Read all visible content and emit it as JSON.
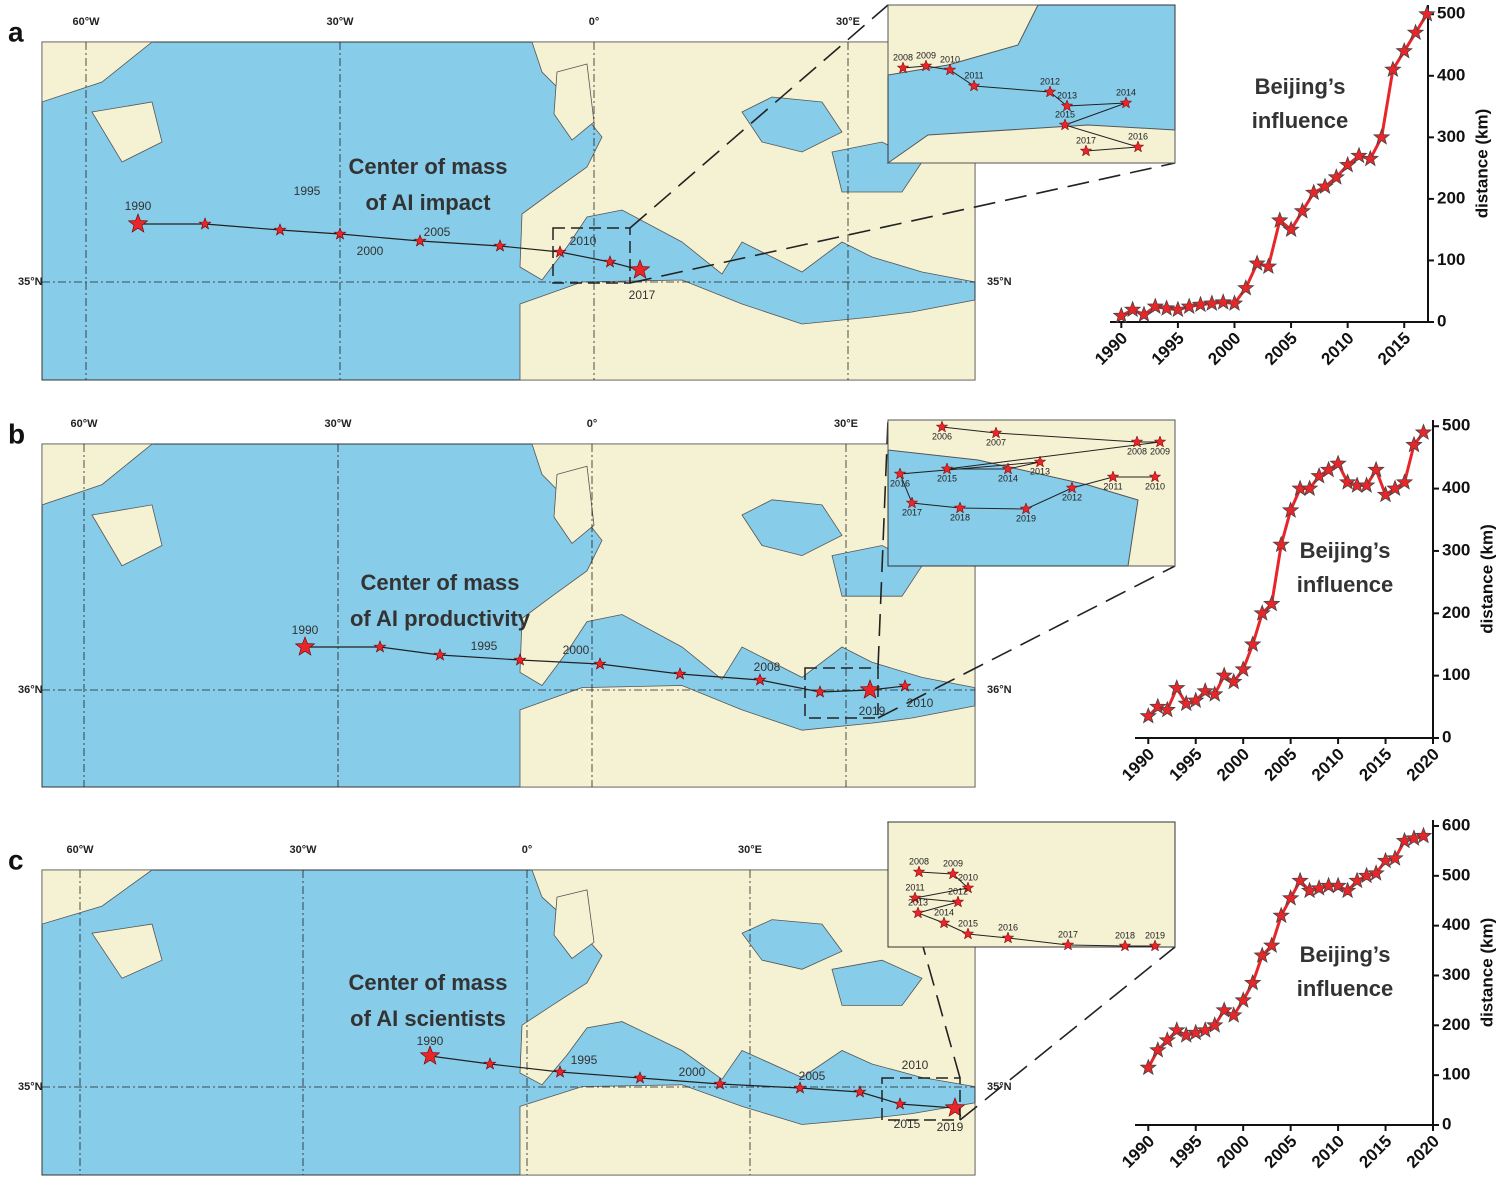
{
  "maps": [
    {
      "panel_label": "a",
      "lon_labels": [
        "60°W",
        "30°W",
        "0°",
        "30°E"
      ],
      "lat_labels": [
        "35°N",
        "35°N"
      ],
      "annotation": [
        "Center of mass",
        "of AI impact"
      ],
      "year_labels": [
        "1990",
        "1995",
        "2000",
        "2005",
        "2010",
        "2017"
      ],
      "inset_labels": [
        "2008",
        "2009",
        "2010",
        "2011",
        "2012",
        "2013",
        "2014",
        "2015",
        "2016",
        "2017"
      ]
    },
    {
      "panel_label": "b",
      "lon_labels": [
        "60°W",
        "30°W",
        "0°",
        "30°E"
      ],
      "lat_labels": [
        "36°N",
        "36°N"
      ],
      "annotation": [
        "Center of mass",
        "of AI productivity"
      ],
      "year_labels": [
        "1990",
        "1995",
        "2000",
        "2008",
        "2019",
        "2010"
      ],
      "inset_labels": [
        "2006",
        "2007",
        "2008",
        "2009",
        "2015",
        "2014",
        "2013",
        "2016",
        "2017",
        "2018",
        "2019",
        "2012",
        "2011",
        "2010"
      ]
    },
    {
      "panel_label": "c",
      "lon_labels": [
        "60°W",
        "30°W",
        "0°",
        "30°E"
      ],
      "lat_labels": [
        "35°N",
        "35°N"
      ],
      "annotation": [
        "Center of mass",
        "of AI scientists"
      ],
      "year_labels": [
        "1990",
        "1995",
        "2000",
        "2005",
        "2010",
        "2015",
        "2019"
      ],
      "inset_labels": [
        "2008",
        "2009",
        "2010",
        "2011",
        "2012",
        "2013",
        "2014",
        "2015",
        "2016",
        "2017",
        "2018",
        "2019"
      ]
    }
  ],
  "chart_data": [
    {
      "type": "line",
      "annotation": [
        "Beijing’s",
        "influence"
      ],
      "ylabel": "distance (km)",
      "color": "#e8262a",
      "x": [
        1990,
        1991,
        1992,
        1993,
        1994,
        1995,
        1996,
        1997,
        1998,
        1999,
        2000,
        2001,
        2002,
        2003,
        2004,
        2005,
        2006,
        2007,
        2008,
        2009,
        2010,
        2011,
        2012,
        2013,
        2014,
        2015,
        2016,
        2017
      ],
      "values": [
        10,
        20,
        12,
        25,
        22,
        20,
        25,
        28,
        30,
        32,
        30,
        55,
        95,
        90,
        165,
        150,
        180,
        210,
        220,
        235,
        255,
        270,
        265,
        300,
        410,
        440,
        470,
        500
      ],
      "xlim": [
        1989,
        2017.1
      ],
      "ylim": [
        0,
        515
      ],
      "xticks": [
        1990,
        1995,
        2000,
        2005,
        2010,
        2015
      ],
      "yticks": [
        0,
        100,
        200,
        300,
        400,
        500
      ]
    },
    {
      "type": "line",
      "annotation": [
        "Beijing’s",
        "influence"
      ],
      "ylabel": "distance (km)",
      "color": "#e8262a",
      "x": [
        1990,
        1991,
        1992,
        1993,
        1994,
        1995,
        1996,
        1997,
        1998,
        1999,
        2000,
        2001,
        2002,
        2003,
        2004,
        2005,
        2006,
        2007,
        2008,
        2009,
        2010,
        2011,
        2012,
        2013,
        2014,
        2015,
        2016,
        2017,
        2018,
        2019
      ],
      "values": [
        35,
        50,
        45,
        80,
        55,
        60,
        75,
        70,
        100,
        90,
        110,
        150,
        200,
        215,
        310,
        365,
        400,
        400,
        420,
        430,
        440,
        410,
        405,
        405,
        430,
        390,
        400,
        410,
        470,
        490
      ],
      "xlim": [
        1988.6,
        2020
      ],
      "ylim": [
        0,
        510
      ],
      "xticks": [
        1990,
        1995,
        2000,
        2005,
        2010,
        2015,
        2020
      ],
      "yticks": [
        0,
        100,
        200,
        300,
        400,
        500
      ]
    },
    {
      "type": "line",
      "annotation": [
        "Beijing’s",
        "influence"
      ],
      "ylabel": "distance (km)",
      "color": "#e8262a",
      "x": [
        1990,
        1991,
        1992,
        1993,
        1994,
        1995,
        1996,
        1997,
        1998,
        1999,
        2000,
        2001,
        2002,
        2003,
        2004,
        2005,
        2006,
        2007,
        2008,
        2009,
        2010,
        2011,
        2012,
        2013,
        2014,
        2015,
        2016,
        2017,
        2018,
        2019
      ],
      "values": [
        115,
        150,
        170,
        190,
        180,
        185,
        190,
        200,
        230,
        220,
        250,
        285,
        340,
        360,
        420,
        455,
        490,
        470,
        475,
        480,
        480,
        470,
        490,
        500,
        505,
        530,
        535,
        570,
        575,
        580
      ],
      "xlim": [
        1988.6,
        2020
      ],
      "ylim": [
        0,
        612
      ],
      "xticks": [
        1990,
        1995,
        2000,
        2005,
        2010,
        2015,
        2020
      ],
      "yticks": [
        0,
        100,
        200,
        300,
        400,
        500,
        600
      ]
    }
  ]
}
